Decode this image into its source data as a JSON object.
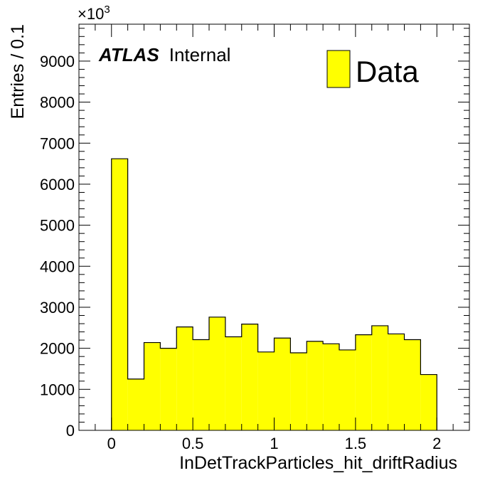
{
  "chart_data": {
    "type": "bar",
    "xlabel": "InDetTrackParticles_hit_driftRadius",
    "ylabel": "Entries / 0.1",
    "multiplier": {
      "base": "×10",
      "exponent": "3"
    },
    "atlas_label": {
      "bold": "ATLAS",
      "normal": "Internal"
    },
    "xlim": [
      -0.2,
      2.2
    ],
    "ylim": [
      0,
      9900
    ],
    "x_ticks": [
      {
        "value": 0,
        "label": "0"
      },
      {
        "value": 0.5,
        "label": "0.5"
      },
      {
        "value": 1,
        "label": "1"
      },
      {
        "value": 1.5,
        "label": "1.5"
      },
      {
        "value": 2,
        "label": "2"
      }
    ],
    "y_ticks": [
      {
        "value": 0,
        "label": "0"
      },
      {
        "value": 1000,
        "label": "1000"
      },
      {
        "value": 2000,
        "label": "2000"
      },
      {
        "value": 3000,
        "label": "3000"
      },
      {
        "value": 4000,
        "label": "4000"
      },
      {
        "value": 5000,
        "label": "5000"
      },
      {
        "value": 6000,
        "label": "6000"
      },
      {
        "value": 7000,
        "label": "7000"
      },
      {
        "value": 8000,
        "label": "8000"
      },
      {
        "value": 9000,
        "label": "9000"
      }
    ],
    "bin_edges": [
      0,
      0.1,
      0.2,
      0.3,
      0.4,
      0.5,
      0.6,
      0.7,
      0.8,
      0.9,
      1.0,
      1.1,
      1.2,
      1.3,
      1.4,
      1.5,
      1.6,
      1.7,
      1.8,
      1.9,
      2.0
    ],
    "series": [
      {
        "name": "Data",
        "color": "#ffff00",
        "edge_color": "#000000",
        "values": [
          6620,
          1250,
          2140,
          2000,
          2520,
          2210,
          2760,
          2280,
          2590,
          1910,
          2250,
          1890,
          2170,
          2110,
          1960,
          2330,
          2550,
          2350,
          2210,
          1360
        ]
      }
    ],
    "legend": {
      "position": "top-right",
      "entries": [
        "Data"
      ]
    },
    "grid": false
  }
}
